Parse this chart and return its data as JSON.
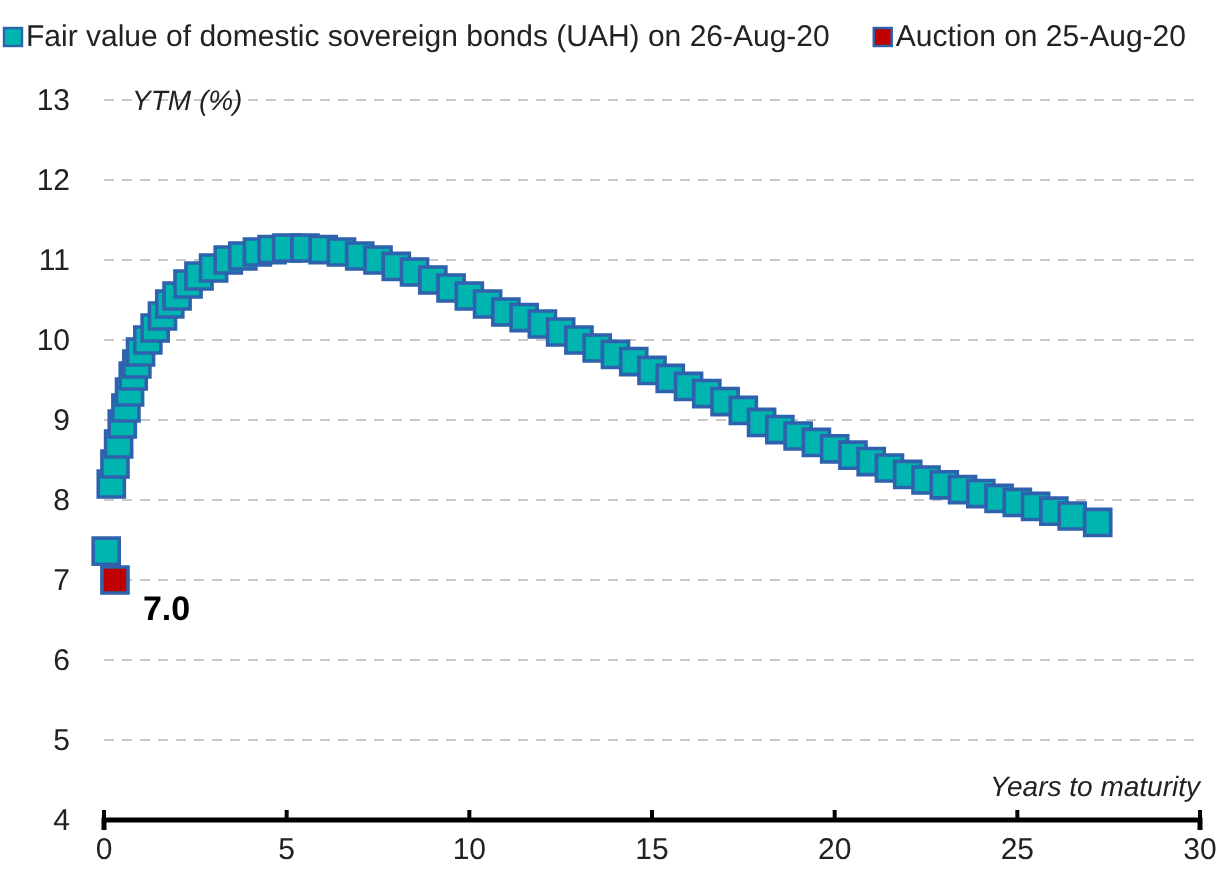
{
  "chart_data": {
    "type": "scatter",
    "xlabel": "Years to maturity",
    "ylabel": "YTM (%)",
    "xlim": [
      0,
      30
    ],
    "xticks": [
      0,
      5,
      10,
      15,
      20,
      25,
      30
    ],
    "ylim": [
      4,
      13
    ],
    "yticks": [
      4,
      5,
      6,
      7,
      8,
      9,
      10,
      11,
      12,
      13
    ],
    "grid": "y",
    "legend": "top left",
    "marker": "square",
    "series": [
      {
        "name": "Fair value of domestic sovereign bonds (UAH) on 26-Aug-20",
        "color": "#00b4b0",
        "x": [
          0.06,
          0.2,
          0.3,
          0.4,
          0.5,
          0.6,
          0.7,
          0.8,
          0.9,
          1.0,
          1.2,
          1.4,
          1.6,
          1.8,
          2.0,
          2.3,
          2.6,
          3.0,
          3.4,
          3.8,
          4.2,
          4.6,
          5.0,
          5.5,
          6.0,
          6.5,
          7.0,
          7.5,
          8.0,
          8.5,
          9.0,
          9.5,
          10.0,
          10.5,
          11.0,
          11.5,
          12.0,
          12.5,
          13.0,
          13.5,
          14.0,
          14.5,
          15.0,
          15.5,
          16.0,
          16.5,
          17.0,
          17.5,
          18.0,
          18.5,
          19.0,
          19.5,
          20.0,
          20.5,
          21.0,
          21.5,
          22.0,
          22.5,
          23.0,
          23.5,
          24.0,
          24.5,
          25.0,
          25.5,
          26.0,
          26.5,
          27.2
        ],
        "values": [
          7.36,
          8.2,
          8.45,
          8.7,
          8.95,
          9.15,
          9.35,
          9.55,
          9.7,
          9.85,
          10.0,
          10.15,
          10.3,
          10.45,
          10.55,
          10.7,
          10.8,
          10.9,
          11.0,
          11.05,
          11.1,
          11.13,
          11.15,
          11.15,
          11.13,
          11.1,
          11.05,
          11.0,
          10.92,
          10.85,
          10.75,
          10.65,
          10.55,
          10.45,
          10.35,
          10.28,
          10.2,
          10.1,
          10.0,
          9.9,
          9.82,
          9.73,
          9.62,
          9.52,
          9.42,
          9.33,
          9.23,
          9.12,
          8.97,
          8.88,
          8.8,
          8.72,
          8.64,
          8.56,
          8.48,
          8.4,
          8.32,
          8.25,
          8.19,
          8.13,
          8.08,
          8.02,
          7.97,
          7.92,
          7.86,
          7.8,
          7.72
        ]
      },
      {
        "name": "Auction on 25-Aug-20",
        "color": "#c00000",
        "x": [
          0.3
        ],
        "values": [
          7.0
        ]
      }
    ],
    "annotations": [
      {
        "text": "7.0",
        "x": 0.3,
        "y": 7.0
      }
    ]
  }
}
